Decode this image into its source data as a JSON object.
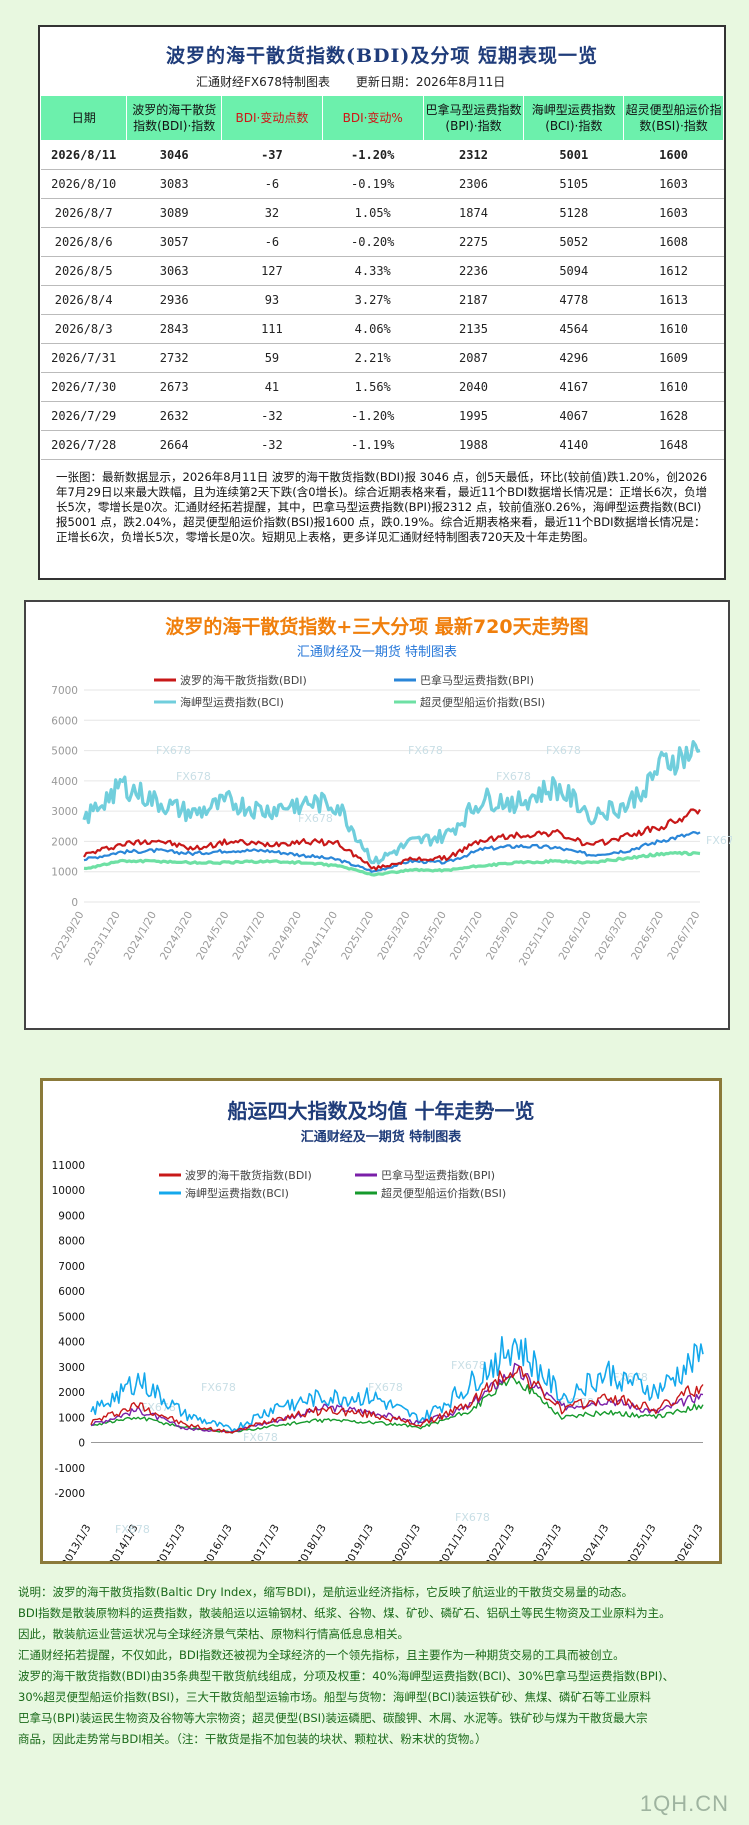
{
  "table": {
    "title": "波罗的海干散货指数(BDI)及分项 短期表现一览",
    "source": "汇通财经FX678特制图表",
    "updated": "更新日期：2026年8月11日",
    "headers": [
      "日期",
      "波罗的海干散货指数(BDI)·指数",
      "BDI·变动点数",
      "BDI·变动%",
      "巴拿马型运费指数(BPI)·指数",
      "海岬型运费指数(BCI)·指数",
      "超灵便型船运价指数(BSI)·指数"
    ],
    "rows": [
      [
        "2026/8/11",
        "3046",
        "-37",
        "-1.20%",
        "2312",
        "5001",
        "1600"
      ],
      [
        "2026/8/10",
        "3083",
        "-6",
        "-0.19%",
        "2306",
        "5105",
        "1603"
      ],
      [
        "2026/8/7",
        "3089",
        "32",
        "1.05%",
        "1874",
        "5128",
        "1603"
      ],
      [
        "2026/8/6",
        "3057",
        "-6",
        "-0.20%",
        "2275",
        "5052",
        "1608"
      ],
      [
        "2026/8/5",
        "3063",
        "127",
        "4.33%",
        "2236",
        "5094",
        "1612"
      ],
      [
        "2026/8/4",
        "2936",
        "93",
        "3.27%",
        "2187",
        "4778",
        "1613"
      ],
      [
        "2026/8/3",
        "2843",
        "111",
        "4.06%",
        "2135",
        "4564",
        "1610"
      ],
      [
        "2026/7/31",
        "2732",
        "59",
        "2.21%",
        "2087",
        "4296",
        "1609"
      ],
      [
        "2026/7/30",
        "2673",
        "41",
        "1.56%",
        "2040",
        "4167",
        "1610"
      ],
      [
        "2026/7/29",
        "2632",
        "-32",
        "-1.20%",
        "1995",
        "4067",
        "1628"
      ],
      [
        "2026/7/28",
        "2664",
        "-32",
        "-1.19%",
        "1988",
        "4140",
        "1648"
      ]
    ],
    "note": "一张图：最新数据显示，2026年8月11日 波罗的海干散货指数(BDI)报 3046 点，创5天最低，环比(较前值)跌1.20%，创2026年7月29日以来最大跌幅，且为连续第2天下跌(含0增长)。综合近期表格来看，最近11个BDI数据增长情况是：正增长6次，负增长5次，零增长是0次。汇通财经拓若提醒，其中，巴拿马型运费指数(BPI)报2312 点，较前值涨0.26%，海岬型运费指数(BCI)报5001 点，跌2.04%，超灵便型船运价指数(BSI)报1600 点，跌0.19%。综合近期表格来看，最近11个BDI数据增长情况是：正增长6次，负增长5次，零增长是0次。短期见上表格，更多详见汇通财经特制图表720天及十年走势图。"
  },
  "chart1": {
    "title": "波罗的海干散货指数+三大分项  最新720天走势图",
    "subtitle": "汇通财经及一期货  特制图表",
    "watermark": "FX678",
    "colors": {
      "BDI": "#c81818",
      "BPI": "#2a86d8",
      "BCI": "#70cedc",
      "BSI": "#6ee0a4"
    }
  },
  "chart2": {
    "title": "船运四大指数及均值 十年走势一览",
    "subtitle": "汇通财经及一期货 特制图表",
    "watermark": "FX678",
    "colors": {
      "BDI": "#c81818",
      "BPI": "#7a1fa8",
      "BCI": "#14a8ec",
      "BSI": "#169a2c"
    }
  },
  "chart_data": [
    {
      "type": "line",
      "title": "波罗的海干散货指数+三大分项  最新720天走势图",
      "x": [
        "2023/9/20",
        "2023/11/20",
        "2024/1/20",
        "2024/3/20",
        "2024/5/20",
        "2024/7/20",
        "2024/9/20",
        "2024/11/20",
        "2025/1/20",
        "2025/3/20",
        "2025/5/20",
        "2025/7/20",
        "2025/9/20",
        "2025/11/20",
        "2026/1/20",
        "2026/3/20",
        "2026/5/20",
        "2026/7/20"
      ],
      "ylim": [
        0,
        7000
      ],
      "yticks": [
        0,
        1000,
        2000,
        3000,
        4000,
        5000,
        6000,
        7000
      ],
      "legend_position": "top",
      "grid": true,
      "series": [
        {
          "name": "波罗的海干散货指数(BDI)",
          "values": [
            1550,
            1900,
            2050,
            1750,
            2000,
            1900,
            2000,
            1950,
            1100,
            1400,
            1450,
            2050,
            2200,
            2300,
            1850,
            2200,
            2500,
            3050
          ]
        },
        {
          "name": "巴拿马型运费指数(BPI)",
          "values": [
            1400,
            1650,
            1700,
            1600,
            1700,
            1700,
            1550,
            1400,
            1000,
            1350,
            1300,
            1750,
            1850,
            1800,
            1550,
            1700,
            2050,
            2300
          ]
        },
        {
          "name": "海岬型运费指数(BCI)",
          "values": [
            2700,
            3900,
            3300,
            2900,
            3300,
            3000,
            3300,
            3200,
            1300,
            1950,
            2200,
            3400,
            3300,
            3800,
            2900,
            3200,
            4600,
            5000
          ]
        },
        {
          "name": "超灵便型船运价指数(BSI)",
          "values": [
            1100,
            1350,
            1350,
            1300,
            1300,
            1350,
            1300,
            1200,
            900,
            1050,
            1050,
            1200,
            1300,
            1350,
            1300,
            1450,
            1600,
            1600
          ]
        }
      ]
    },
    {
      "type": "line",
      "title": "船运四大指数及均值 十年走势一览",
      "x": [
        "2013/1/3",
        "2014/1/3",
        "2015/1/3",
        "2016/1/3",
        "2017/1/3",
        "2018/1/3",
        "2019/1/3",
        "2020/1/3",
        "2021/1/3",
        "2022/1/3",
        "2023/1/3",
        "2024/1/3",
        "2025/1/3",
        "2026/1/3"
      ],
      "ylim": [
        -2000,
        11000
      ],
      "yticks": [
        -2000,
        -1000,
        0,
        1000,
        2000,
        3000,
        4000,
        5000,
        6000,
        7000,
        8000,
        9000,
        10000,
        11000
      ],
      "legend_position": "top",
      "grid": false,
      "series": [
        {
          "name": "波罗的海干散货指数(BDI)",
          "values": [
            800,
            1500,
            700,
            400,
            1000,
            1300,
            1100,
            700,
            1500,
            3000,
            1300,
            1800,
            1300,
            2300
          ]
        },
        {
          "name": "巴拿马型运费指数(BPI)",
          "values": [
            700,
            1300,
            550,
            450,
            900,
            1400,
            1200,
            750,
            1400,
            2900,
            1400,
            1700,
            1200,
            1900
          ]
        },
        {
          "name": "海岬型运费指数(BCI)",
          "values": [
            1200,
            2500,
            1100,
            500,
            1500,
            1800,
            1800,
            900,
            2200,
            4000,
            1800,
            2800,
            2000,
            3500
          ]
        },
        {
          "name": "超灵便型船运价指数(BSI)",
          "values": [
            700,
            1000,
            600,
            400,
            700,
            900,
            800,
            600,
            1200,
            2600,
            1000,
            1200,
            1000,
            1500
          ]
        }
      ]
    }
  ],
  "description": [
    "说明：波罗的海干散货指数(Baltic Dry Index，缩写BDI)，是航运业经济指标，它反映了航运业的干散货交易量的动态。",
    "BDI指数是散装原物料的运费指数，散装船运以运输钢材、纸浆、谷物、煤、矿砂、磷矿石、铝矾土等民生物资及工业原料为主。",
    "因此，散装航运业营运状况与全球经济景气荣枯、原物料行情高低息息相关。",
    "汇通财经拓若提醒，不仅如此，BDI指数还被视为全球经济的一个领先指标，且主要作为一种期货交易的工具而被创立。",
    "波罗的海干散货指数(BDI)由35条典型干散货航线组成，分项及权重：40%海岬型运费指数(BCI)、30%巴拿马型运费指数(BPI)、",
    "30%超灵便型船运价指数(BSI)，三大干散货船型运输市场。船型与货物：海岬型(BCI)装运铁矿砂、焦煤、磷矿石等工业原料",
    "巴拿马(BPI)装运民生物资及谷物等大宗物资；超灵便型(BSI)装运磷肥、碳酸钾、木屑、水泥等。铁矿砂与煤为干散货最大宗",
    "商品，因此走势常与BDI相关。（注：干散货是指不加包装的块状、颗粒状、粉末状的货物。）"
  ],
  "site_tag": "1QH.CN"
}
